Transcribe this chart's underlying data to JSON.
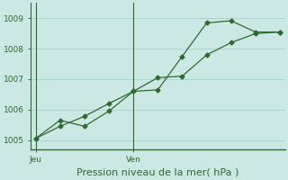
{
  "title": "Pression niveau de la mer( hPa )",
  "bg_color": "#cce8e4",
  "grid_color": "#aad4ce",
  "line_color": "#2d6a2d",
  "spine_color": "#2d6a2d",
  "ylim": [
    1004.7,
    1009.5
  ],
  "yticks": [
    1005,
    1006,
    1007,
    1008,
    1009
  ],
  "tick_fontsize": 6.5,
  "title_fontsize": 8,
  "line1_x": [
    0,
    1,
    2,
    3,
    4,
    5,
    6,
    7,
    8,
    9,
    10
  ],
  "line1_y": [
    1005.05,
    1005.65,
    1005.45,
    1005.95,
    1006.6,
    1006.65,
    1007.75,
    1008.85,
    1008.92,
    1008.55,
    1008.55
  ],
  "line2_x": [
    0,
    1,
    2,
    3,
    4,
    5,
    6,
    7,
    8,
    9,
    10
  ],
  "line2_y": [
    1005.05,
    1005.45,
    1005.78,
    1006.2,
    1006.6,
    1007.05,
    1007.1,
    1007.8,
    1008.2,
    1008.5,
    1008.55
  ],
  "xlim": [
    -0.2,
    10.2
  ],
  "jeu_x": 0.0,
  "ven_x": 4.0,
  "xtick_positions": [
    0.0,
    4.0
  ],
  "xtick_labels": [
    "Jeu",
    "Ven"
  ]
}
